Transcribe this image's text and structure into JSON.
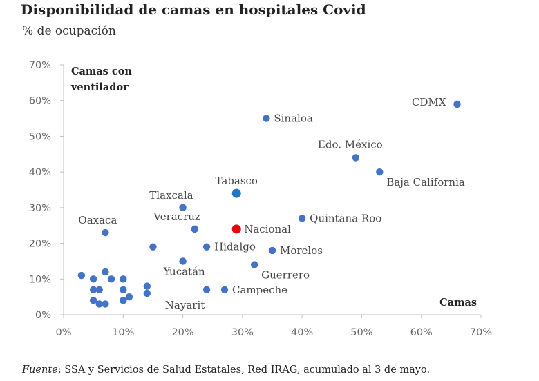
{
  "header": {
    "title": "Disponibilidad de camas en hospitales Covid",
    "subtitle": "% de ocupación"
  },
  "footer": {
    "source_label": "Fuente",
    "source_text": ": SSA y Servicios de Salud Estatales, Red IRAG, acumulado al 3 de mayo."
  },
  "colors": {
    "default_point": "#4472C4",
    "tabasco_point": "#1F77C4",
    "nacional_point": "#E8000B",
    "axis": "#bfbfbf"
  },
  "chart_data": {
    "type": "scatter",
    "title": "Disponibilidad de camas en hospitales Covid",
    "subtitle": "% de ocupación",
    "xlabel": "Camas",
    "ylabel_lines": [
      "Camas con",
      "ventilador"
    ],
    "xlim": [
      0,
      70
    ],
    "ylim": [
      0,
      70
    ],
    "xticks": [
      "0%",
      "10%",
      "20%",
      "30%",
      "40%",
      "50%",
      "60%",
      "70%"
    ],
    "yticks": [
      "0%",
      "10%",
      "20%",
      "30%",
      "40%",
      "50%",
      "60%",
      "70%"
    ],
    "grid": false,
    "points": [
      {
        "label": "CDMX",
        "x": 66,
        "y": 59,
        "label_pos": "left"
      },
      {
        "label": "Sinaloa",
        "x": 34,
        "y": 55,
        "label_pos": "right"
      },
      {
        "label": "Edo. México",
        "x": 49,
        "y": 44,
        "label_pos": "above"
      },
      {
        "label": "Baja California",
        "x": 53,
        "y": 40,
        "label_pos": "below-right"
      },
      {
        "label": "Tabasco",
        "x": 29,
        "y": 34,
        "label_pos": "above",
        "highlight": "tabasco"
      },
      {
        "label": "Tlaxcala",
        "x": 20,
        "y": 30,
        "label_pos": "above-left"
      },
      {
        "label": "Quintana Roo",
        "x": 40,
        "y": 27,
        "label_pos": "right"
      },
      {
        "label": "Nacional",
        "x": 29,
        "y": 24,
        "label_pos": "right",
        "highlight": "nacional"
      },
      {
        "label": "Veracruz",
        "x": 22,
        "y": 24,
        "label_pos": "above-left"
      },
      {
        "label": "Oaxaca",
        "x": 7,
        "y": 23,
        "label_pos": "above"
      },
      {
        "label": "Hidalgo",
        "x": 24,
        "y": 19,
        "label_pos": "right"
      },
      {
        "label": "Morelos",
        "x": 35,
        "y": 18,
        "label_pos": "right"
      },
      {
        "label": "Yucatán",
        "x": 20,
        "y": 15,
        "label_pos": "below"
      },
      {
        "label": "Guerrero",
        "x": 32,
        "y": 14,
        "label_pos": "below-right"
      },
      {
        "label": "Campeche",
        "x": 27,
        "y": 7,
        "label_pos": "right"
      },
      {
        "label": "Nayarit",
        "x": 14,
        "y": 6,
        "label_pos": "below-right"
      },
      {
        "label": "",
        "x": 15,
        "y": 19
      },
      {
        "label": "",
        "x": 3,
        "y": 11
      },
      {
        "label": "",
        "x": 5,
        "y": 10
      },
      {
        "label": "",
        "x": 7,
        "y": 12
      },
      {
        "label": "",
        "x": 8,
        "y": 10
      },
      {
        "label": "",
        "x": 10,
        "y": 10
      },
      {
        "label": "",
        "x": 5,
        "y": 7
      },
      {
        "label": "",
        "x": 6,
        "y": 7
      },
      {
        "label": "",
        "x": 10,
        "y": 7
      },
      {
        "label": "",
        "x": 14,
        "y": 8
      },
      {
        "label": "",
        "x": 11,
        "y": 5
      },
      {
        "label": "",
        "x": 5,
        "y": 4
      },
      {
        "label": "",
        "x": 6,
        "y": 3
      },
      {
        "label": "",
        "x": 7,
        "y": 3
      },
      {
        "label": "",
        "x": 10,
        "y": 4
      },
      {
        "label": "",
        "x": 24,
        "y": 7
      }
    ]
  }
}
